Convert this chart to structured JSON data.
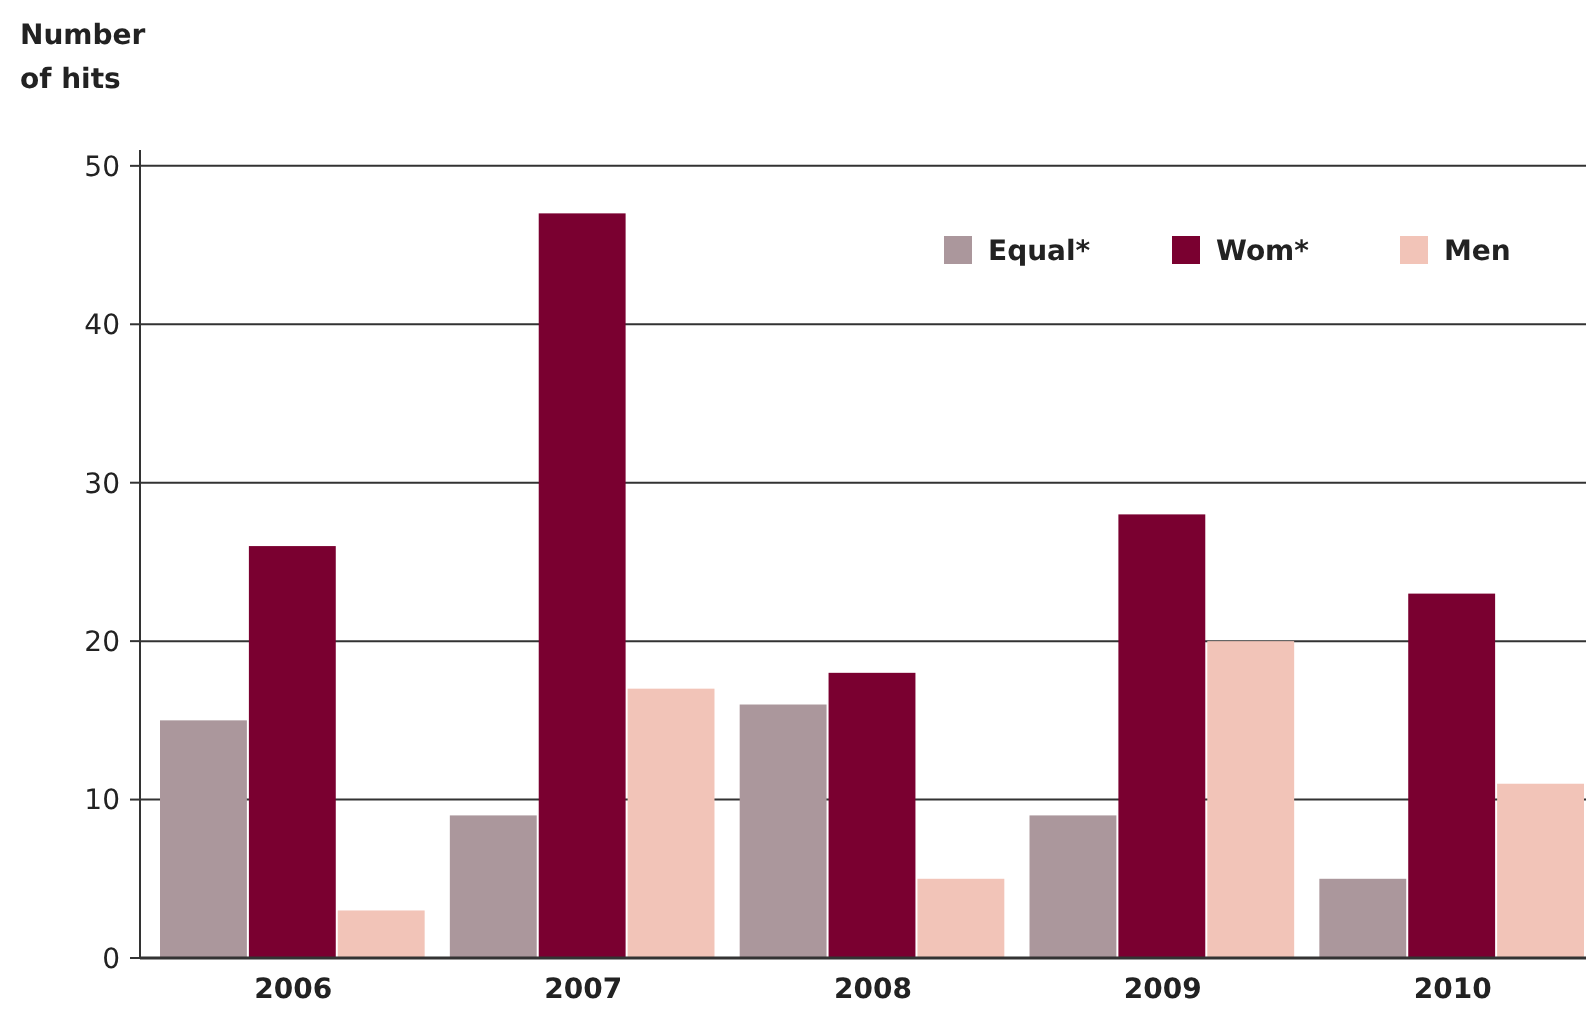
{
  "chart_data": {
    "type": "bar",
    "ylabel": "Number of hits",
    "categories": [
      "2006",
      "2007",
      "2008",
      "2009",
      "2010"
    ],
    "series": [
      {
        "name": "Equal*",
        "color": "#ab979c",
        "values": [
          15,
          9,
          16,
          9,
          5
        ]
      },
      {
        "name": "Wom*",
        "color": "#7a0030",
        "values": [
          26,
          47,
          18,
          28,
          23
        ]
      },
      {
        "name": "Men",
        "color": "#f2c4b8",
        "values": [
          3,
          17,
          5,
          20,
          11
        ]
      }
    ],
    "ylim": [
      0,
      51
    ],
    "yticks": [
      0,
      10,
      20,
      30,
      40,
      50
    ],
    "grid": "y",
    "legend": "top right"
  }
}
